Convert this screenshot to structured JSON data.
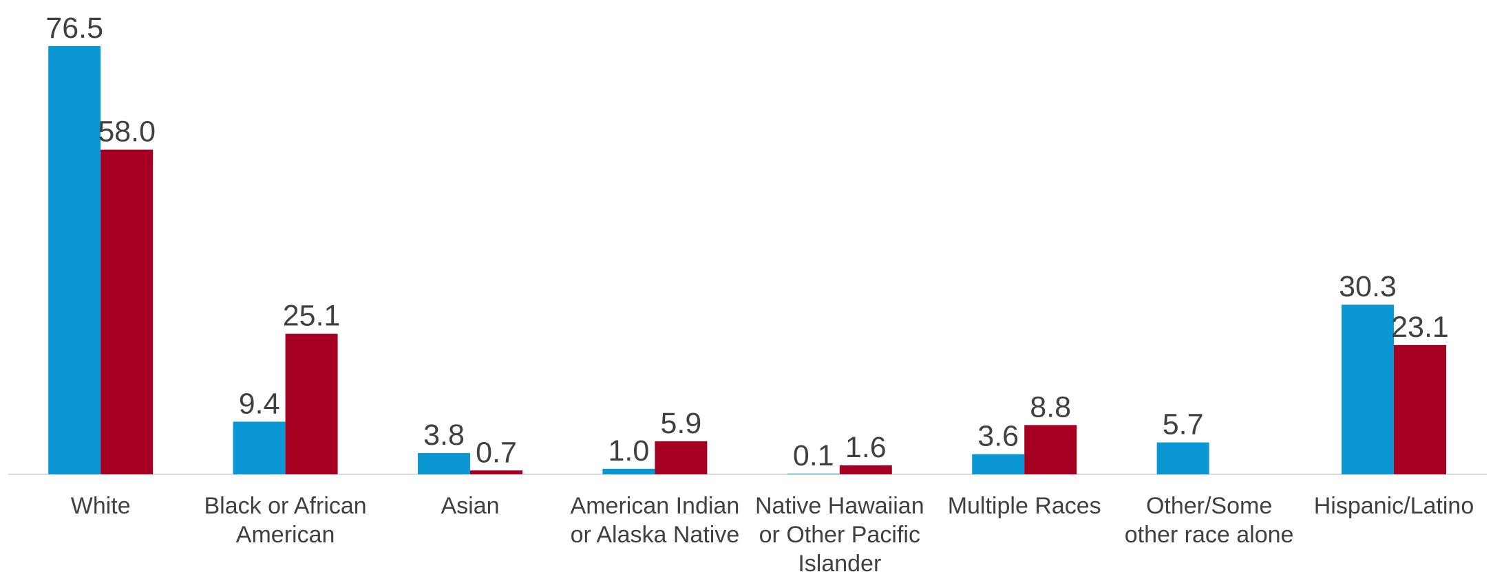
{
  "chart_data": {
    "type": "bar",
    "categories": [
      [
        "White"
      ],
      [
        "Black or African",
        "American"
      ],
      [
        "Asian"
      ],
      [
        "American Indian",
        "or Alaska Native"
      ],
      [
        "Native Hawaiian",
        "or Other Pacific",
        "Islander"
      ],
      [
        "Multiple Races"
      ],
      [
        "Other/Some",
        "other race alone"
      ],
      [
        "Hispanic/Latino"
      ]
    ],
    "series": [
      {
        "color": "#0B96D4",
        "values": [
          76.5,
          9.4,
          3.8,
          1.0,
          0.1,
          3.6,
          5.7,
          30.3
        ],
        "labels": [
          "76.5",
          "9.4",
          "3.8",
          "1.0",
          "0.1",
          "3.6",
          "5.7",
          "30.3"
        ]
      },
      {
        "color": "#A50021",
        "values": [
          58.0,
          25.1,
          0.7,
          5.9,
          1.6,
          8.8,
          null,
          23.1
        ],
        "labels": [
          "58.0",
          "25.1",
          "0.7",
          "5.9",
          "1.6",
          "8.8",
          "",
          "23.1"
        ]
      }
    ],
    "ylim": [
      0,
      80
    ],
    "grid": false,
    "legend": "none",
    "title": "",
    "xlabel": "",
    "ylabel": ""
  }
}
